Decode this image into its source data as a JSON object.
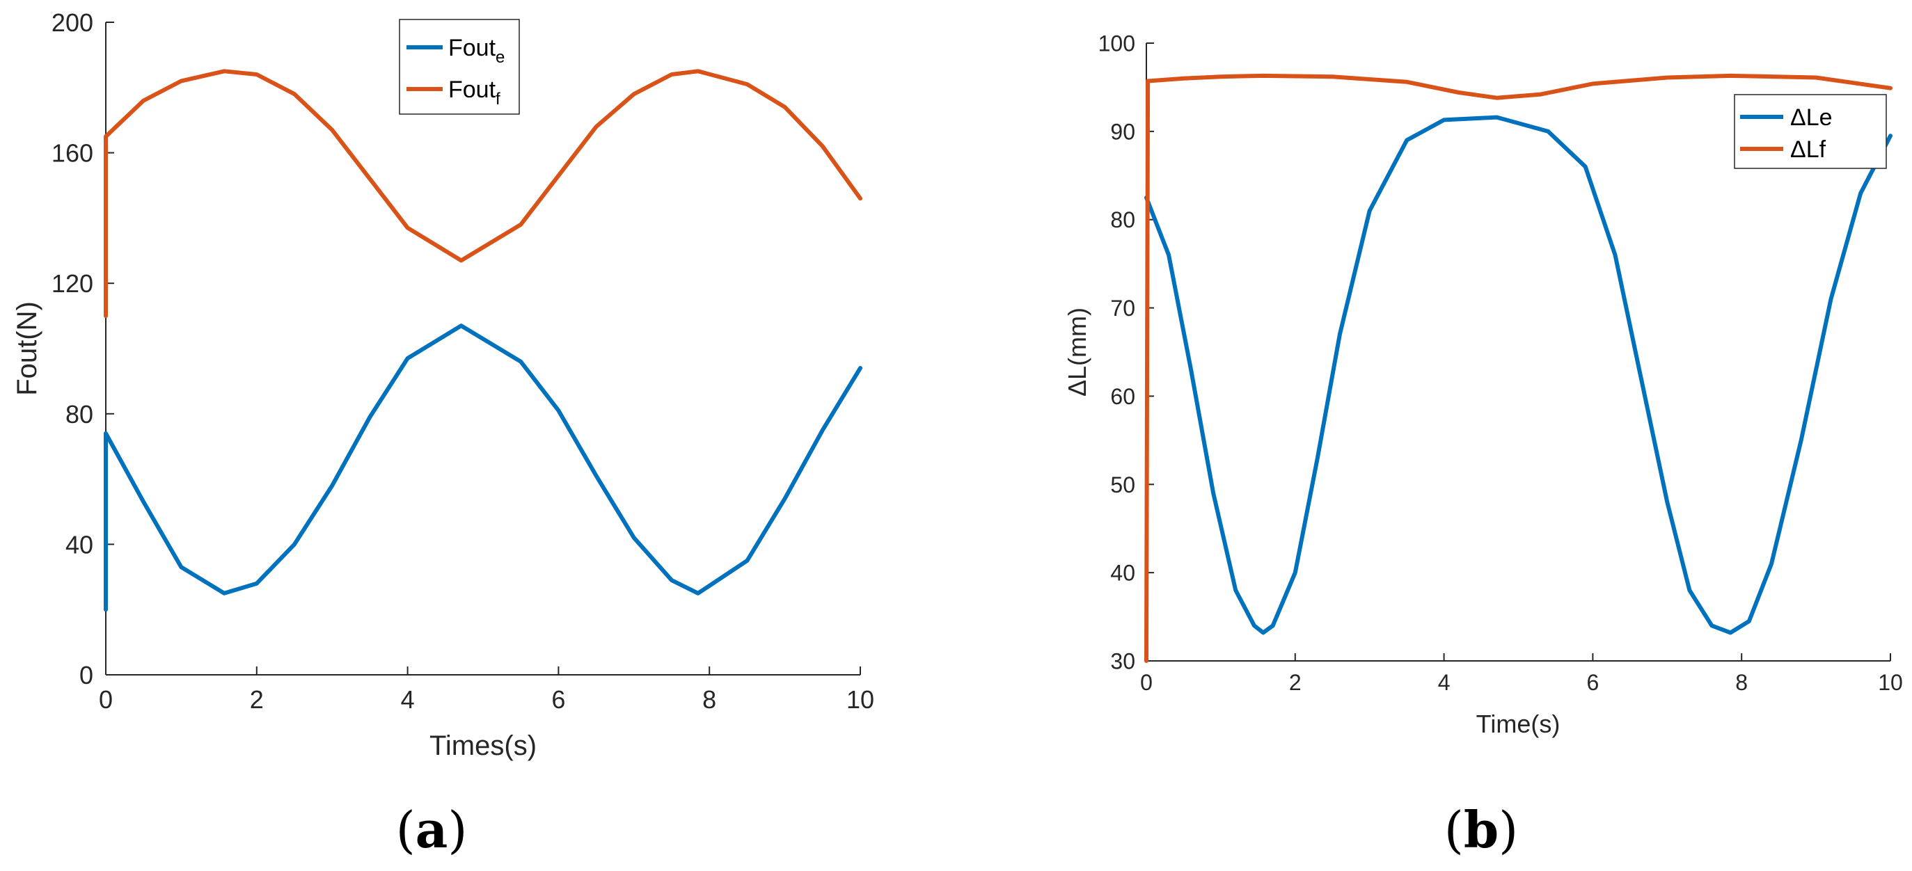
{
  "colors": {
    "series1": "#0072BD",
    "series2": "#D95319",
    "axis": "#262626"
  },
  "panels": [
    {
      "label_left": "(",
      "label_bold": "a",
      "label_right": ")"
    },
    {
      "label_left": "(",
      "label_bold": "b",
      "label_right": ")"
    }
  ],
  "chart_data": [
    {
      "type": "line",
      "title": "",
      "xlabel": "Times(s)",
      "ylabel": "Fout(N)",
      "xlim": [
        0,
        10
      ],
      "ylim": [
        0,
        200
      ],
      "xticks": [
        0,
        2,
        4,
        6,
        8,
        10
      ],
      "yticks": [
        0,
        40,
        80,
        120,
        160,
        200
      ],
      "xtick_labels": [
        "0",
        "2",
        "4",
        "6",
        "8",
        "10"
      ],
      "ytick_labels": [
        "0",
        "40",
        "80",
        "120",
        "160",
        "200"
      ],
      "legend_position": "top-center",
      "series": [
        {
          "legend_base": "Fout",
          "legend_sub": "e",
          "color": "#0072BD",
          "x": [
            0,
            0,
            0.5,
            1.0,
            1.57,
            2.0,
            2.5,
            3.0,
            3.5,
            4.0,
            4.71,
            5.5,
            6.0,
            6.5,
            7.0,
            7.5,
            7.85,
            8.5,
            9.0,
            9.5,
            10
          ],
          "y": [
            20,
            74,
            53,
            33,
            25,
            28,
            40,
            58,
            79,
            97,
            107,
            96,
            81,
            61,
            42,
            29,
            25,
            35,
            54,
            75,
            94
          ]
        },
        {
          "legend_base": "Fout",
          "legend_sub": "f",
          "color": "#D95319",
          "x": [
            0,
            0,
            0.5,
            1.0,
            1.57,
            2.0,
            2.5,
            3.0,
            3.5,
            4.0,
            4.71,
            5.5,
            6.0,
            6.5,
            7.0,
            7.5,
            7.85,
            8.5,
            9.0,
            9.5,
            10
          ],
          "y": [
            110,
            165,
            176,
            182,
            185,
            184,
            178,
            167,
            152,
            137,
            127,
            138,
            153,
            168,
            178,
            184,
            185,
            181,
            174,
            162,
            146
          ]
        }
      ]
    },
    {
      "type": "line",
      "title": "",
      "xlabel": "Time(s)",
      "ylabel": "ΔL(mm)",
      "xlim": [
        0,
        10
      ],
      "ylim": [
        30,
        100
      ],
      "xticks": [
        0,
        2,
        4,
        6,
        8,
        10
      ],
      "yticks": [
        30,
        40,
        50,
        60,
        70,
        80,
        90,
        100
      ],
      "xtick_labels": [
        "0",
        "2",
        "4",
        "6",
        "8",
        "10"
      ],
      "ytick_labels": [
        "30",
        "40",
        "50",
        "60",
        "70",
        "80",
        "90",
        "100"
      ],
      "legend_position": "top-right",
      "series": [
        {
          "legend_base": "ΔLe",
          "legend_sub": "",
          "color": "#0072BD",
          "x": [
            0,
            0.3,
            0.6,
            0.9,
            1.2,
            1.45,
            1.57,
            1.7,
            2.0,
            2.3,
            2.6,
            3.0,
            3.5,
            4.0,
            4.71,
            5.4,
            5.9,
            6.3,
            6.6,
            7.0,
            7.3,
            7.6,
            7.85,
            8.1,
            8.4,
            8.8,
            9.2,
            9.6,
            10
          ],
          "y": [
            82.5,
            76,
            63,
            49,
            38,
            34,
            33.2,
            34,
            40,
            53,
            67,
            81,
            89,
            91.3,
            91.6,
            90,
            86,
            76,
            64,
            48,
            38,
            34,
            33.2,
            34.5,
            41,
            55,
            71,
            83,
            89.5
          ]
        },
        {
          "legend_base": "ΔLf",
          "legend_sub": "",
          "color": "#D95319",
          "x": [
            0,
            0.02,
            0.5,
            1.0,
            1.57,
            2.5,
            3.5,
            4.2,
            4.71,
            5.3,
            6.0,
            7.0,
            7.85,
            9.0,
            10
          ],
          "y": [
            30,
            95.7,
            96,
            96.2,
            96.3,
            96.2,
            95.6,
            94.4,
            93.8,
            94.2,
            95.4,
            96.1,
            96.3,
            96.1,
            94.9
          ]
        }
      ]
    }
  ]
}
